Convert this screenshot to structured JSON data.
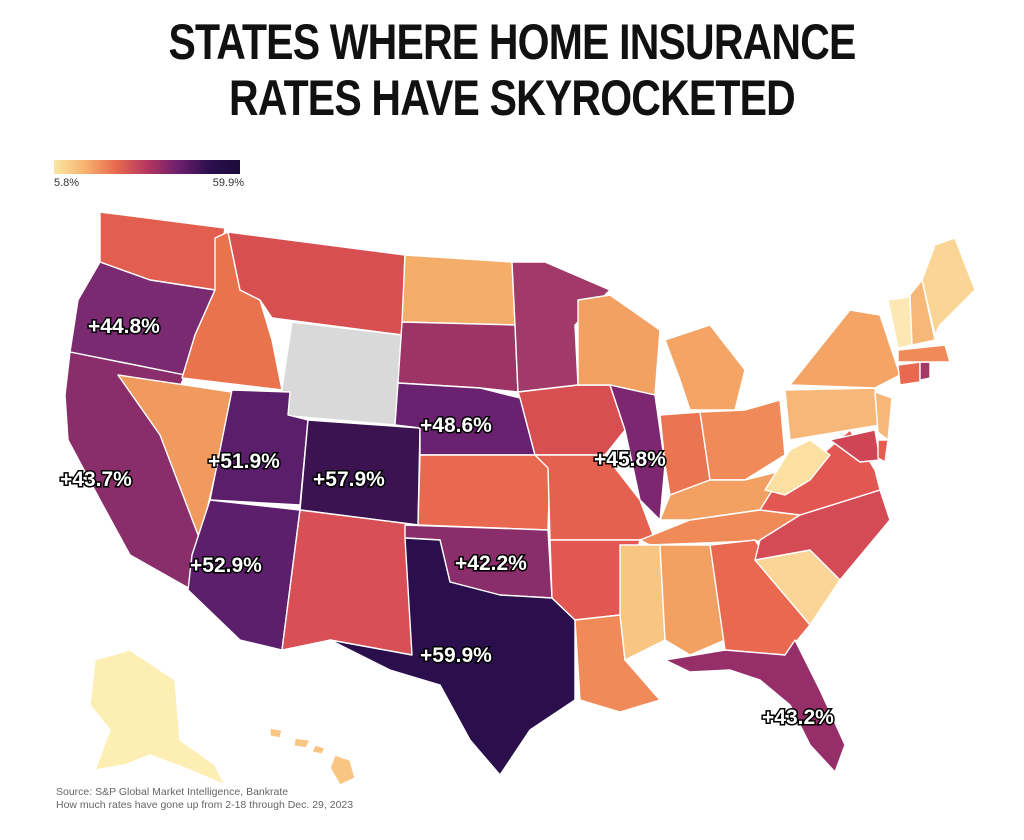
{
  "title": {
    "line1": "STATES WHERE HOME INSURANCE",
    "line2": "RATES HAVE SKYROCKETED"
  },
  "legend": {
    "min_label": "5.8%",
    "max_label": "59.9%",
    "min_value": 5.8,
    "max_value": 59.9,
    "colors": [
      "#fbe6a3",
      "#f6b36f",
      "#e8694f",
      "#b4375f",
      "#6d1f6e",
      "#2d0f4e",
      "#1a0b3a"
    ]
  },
  "labels": [
    {
      "state": "Oregon",
      "text": "+44.8%"
    },
    {
      "state": "California",
      "text": "+43.7%"
    },
    {
      "state": "Utah",
      "text": "+51.9%"
    },
    {
      "state": "Colorado",
      "text": "+57.9%"
    },
    {
      "state": "Nebraska",
      "text": "+48.6%"
    },
    {
      "state": "Illinois",
      "text": "+45.8%"
    },
    {
      "state": "Arizona",
      "text": "+52.9%"
    },
    {
      "state": "Oklahoma",
      "text": "+42.2%"
    },
    {
      "state": "Texas",
      "text": "+59.9%"
    },
    {
      "state": "Florida",
      "text": "+43.2%"
    }
  ],
  "no_data_color": "#d9d9d9",
  "source": {
    "line1": "Source: S&P Global Market Intelligence, Bankrate",
    "line2": "How much rates have gone up from 2-18 through Dec. 29, 2023"
  }
}
